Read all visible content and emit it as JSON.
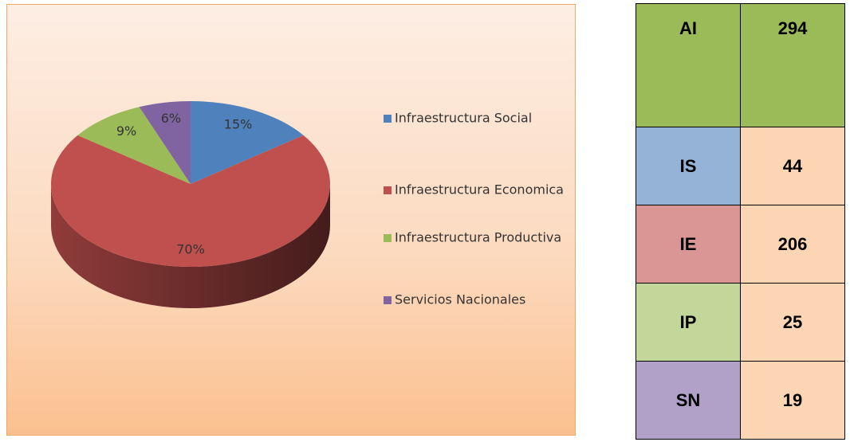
{
  "chart_data": {
    "type": "pie",
    "categories": [
      "Infraestructura Social",
      "Infraestructura Economica",
      "Infraestructura Productiva",
      "Servicios Nacionales"
    ],
    "values": [
      15,
      70,
      9,
      6
    ],
    "value_labels": [
      "15%",
      "70%",
      "9%",
      "6%"
    ],
    "colors": [
      "#4f81bd",
      "#c0504d",
      "#9bbb59",
      "#8064a2"
    ],
    "legend": "right"
  },
  "table": {
    "rows": [
      [
        "AI",
        294
      ],
      [
        "IS",
        44
      ],
      [
        "IE",
        206
      ],
      [
        "IP",
        25
      ],
      [
        "SN",
        19
      ]
    ]
  }
}
